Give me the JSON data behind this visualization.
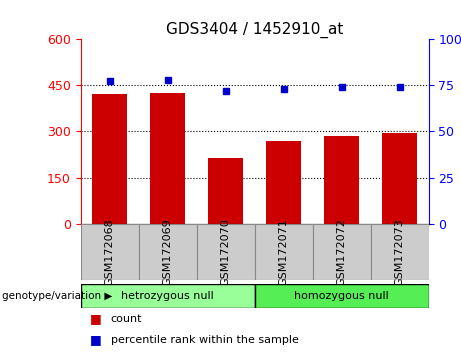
{
  "title": "GDS3404 / 1452910_at",
  "categories": [
    "GSM172068",
    "GSM172069",
    "GSM172070",
    "GSM172071",
    "GSM172072",
    "GSM172073"
  ],
  "bar_values": [
    420,
    425,
    215,
    270,
    285,
    295
  ],
  "percentile_values": [
    77,
    78,
    72,
    73,
    74,
    74
  ],
  "bar_color": "#cc0000",
  "dot_color": "#0000cc",
  "left_ylim": [
    0,
    600
  ],
  "right_ylim": [
    0,
    100
  ],
  "left_yticks": [
    0,
    150,
    300,
    450,
    600
  ],
  "right_yticks": [
    0,
    25,
    50,
    75,
    100
  ],
  "grid_values": [
    150,
    300,
    450
  ],
  "groups": [
    {
      "label": "hetrozygous null",
      "indices": [
        0,
        1,
        2
      ],
      "color": "#99ff99"
    },
    {
      "label": "homozygous null",
      "indices": [
        3,
        4,
        5
      ],
      "color": "#55ee55"
    }
  ],
  "genotype_label": "genotype/variation",
  "legend_count_label": "count",
  "legend_percentile_label": "percentile rank within the sample",
  "bar_color_legend": "#cc0000",
  "dot_color_legend": "#0000cc",
  "sample_box_color": "#cccccc",
  "title_fontsize": 11,
  "tick_label_fontsize": 8,
  "group_label_fontsize": 8,
  "legend_fontsize": 8
}
